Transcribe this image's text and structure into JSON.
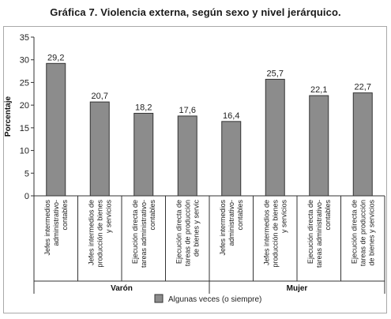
{
  "chart_data": {
    "type": "bar",
    "title": "Gráfica 7. Violencia externa, según sexo y nivel jerárquico.",
    "ylabel": "Porcentaje",
    "ylim": [
      0,
      35
    ],
    "yticks": [
      0,
      5,
      10,
      15,
      20,
      25,
      30,
      35
    ],
    "grid": false,
    "legend_position": "bottom-center",
    "categories": [
      [
        "Jefes intermedios",
        "administrativo-",
        "contables"
      ],
      [
        "Jefes intermedios de",
        "producción de bienes",
        "y servicios"
      ],
      [
        "Ejecución directa de",
        "tareas administrativo-",
        "contables"
      ],
      [
        "Ejecución directa de",
        "tareas de producción",
        "de bienes y servic"
      ],
      [
        "Jefes intermedios",
        "administrativo-",
        "contables"
      ],
      [
        "Jefes intermedios de",
        "producción de bienes",
        "y servicios"
      ],
      [
        "Ejecución directa de",
        "tareas administrativo-",
        "contables"
      ],
      [
        "Ejecución directa de",
        "tareas de producción",
        "de bienes y servicios"
      ]
    ],
    "groups": [
      {
        "label": "Varón",
        "span": [
          0,
          3
        ]
      },
      {
        "label": "Mujer",
        "span": [
          4,
          7
        ]
      }
    ],
    "series": [
      {
        "name": "Algunas veces (o siempre)",
        "values": [
          29.2,
          20.7,
          18.2,
          17.6,
          16.4,
          25.7,
          22.1,
          22.7
        ],
        "labels": [
          "29,2",
          "20,7",
          "18,2",
          "17,6",
          "16,4",
          "25,7",
          "22,1",
          "22,7"
        ],
        "color": "#8c8c8c"
      }
    ]
  }
}
